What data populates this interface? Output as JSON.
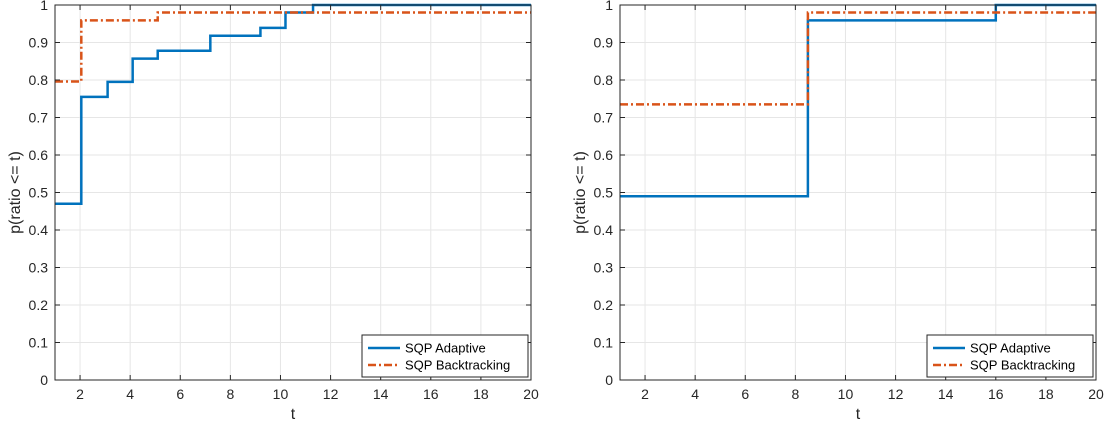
{
  "chart_data": [
    {
      "type": "line",
      "subtype": "stairs",
      "xlabel": "t",
      "ylabel": "p(ratio <= t)",
      "xlim": [
        1,
        20
      ],
      "ylim": [
        0,
        1
      ],
      "xticks": [
        2,
        4,
        6,
        8,
        10,
        12,
        14,
        16,
        18,
        20
      ],
      "yticks": [
        0,
        0.1,
        0.2,
        0.3,
        0.4,
        0.5,
        0.6,
        0.7,
        0.8,
        0.9,
        1
      ],
      "xtick_labels": [
        "2",
        "4",
        "6",
        "8",
        "10",
        "12",
        "14",
        "16",
        "18",
        "20"
      ],
      "ytick_labels": [
        "0",
        "0.1",
        "0.2",
        "0.3",
        "0.4",
        "0.5",
        "0.6",
        "0.7",
        "0.8",
        "0.9",
        "1"
      ],
      "grid": true,
      "legend_position": "bottom-right",
      "series": [
        {
          "name": "SQP Adaptive",
          "color": "#0072BD",
          "style": "solid",
          "x": [
            1,
            2.05,
            3.1,
            4.1,
            5.1,
            7.2,
            9.2,
            10.2,
            11.3,
            20
          ],
          "y": [
            0.47,
            0.755,
            0.795,
            0.857,
            0.878,
            0.918,
            0.939,
            0.98,
            1.0,
            1.0
          ]
        },
        {
          "name": "SQP Backtracking",
          "color": "#D95319",
          "style": "dashdot",
          "x": [
            1,
            2.05,
            5.1,
            20
          ],
          "y": [
            0.796,
            0.959,
            0.98,
            0.98
          ]
        }
      ]
    },
    {
      "type": "line",
      "subtype": "stairs",
      "xlabel": "t",
      "ylabel": "p(ratio <= t)",
      "xlim": [
        1,
        20
      ],
      "ylim": [
        0,
        1
      ],
      "xticks": [
        2,
        4,
        6,
        8,
        10,
        12,
        14,
        16,
        18,
        20
      ],
      "yticks": [
        0,
        0.1,
        0.2,
        0.3,
        0.4,
        0.5,
        0.6,
        0.7,
        0.8,
        0.9,
        1
      ],
      "xtick_labels": [
        "2",
        "4",
        "6",
        "8",
        "10",
        "12",
        "14",
        "16",
        "18",
        "20"
      ],
      "ytick_labels": [
        "0",
        "0.1",
        "0.2",
        "0.3",
        "0.4",
        "0.5",
        "0.6",
        "0.7",
        "0.8",
        "0.9",
        "1"
      ],
      "grid": true,
      "legend_position": "bottom-right",
      "series": [
        {
          "name": "SQP Adaptive",
          "color": "#0072BD",
          "style": "solid",
          "x": [
            1,
            8.5,
            16,
            20
          ],
          "y": [
            0.49,
            0.959,
            1.0,
            1.0
          ]
        },
        {
          "name": "SQP Backtracking",
          "color": "#D95319",
          "style": "dashdot",
          "x": [
            1,
            8.5,
            20
          ],
          "y": [
            0.735,
            0.98,
            0.98
          ]
        }
      ]
    }
  ]
}
